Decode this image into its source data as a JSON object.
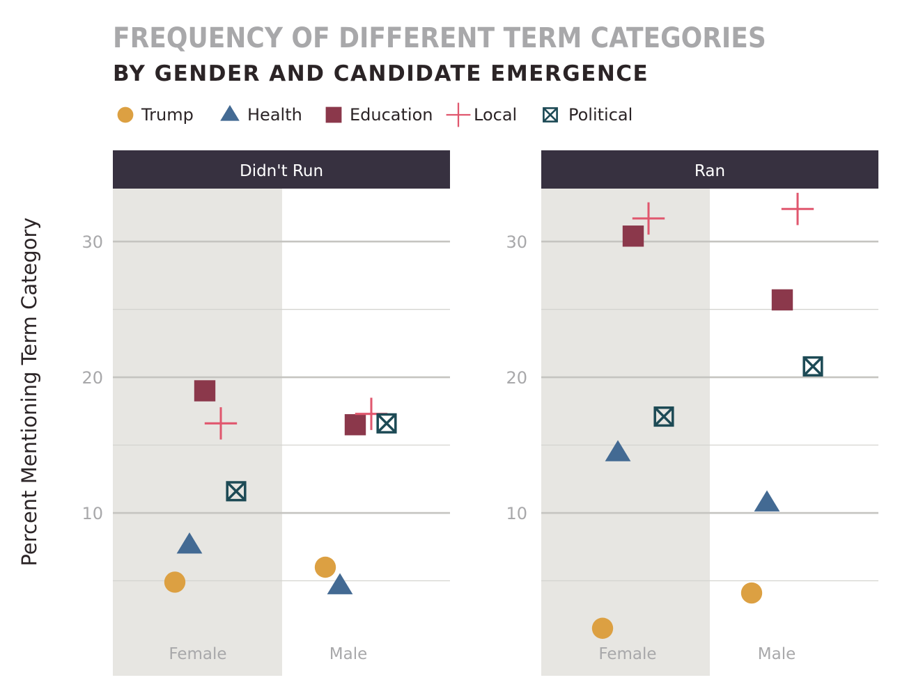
{
  "chart_data": {
    "type": "scatter",
    "title": "FREQUENCY OF DIFFERENT TERM CATEGORIES",
    "subtitle": "BY GENDER AND CANDIDATE EMERGENCE",
    "ylabel": "Percent Mentioning Term Category",
    "yticks": [
      10,
      20,
      30
    ],
    "ylim": [
      -2,
      33.9
    ],
    "grid": true,
    "legend_position": "top",
    "categories": [
      "Female",
      "Male"
    ],
    "series": [
      {
        "name": "Trump",
        "shape": "circle",
        "color": "#dca042"
      },
      {
        "name": "Health",
        "shape": "triangle",
        "color": "#436a93"
      },
      {
        "name": "Education",
        "shape": "square",
        "color": "#8b384b"
      },
      {
        "name": "Local",
        "shape": "plus",
        "color": "#e0576e"
      },
      {
        "name": "Political",
        "shape": "boxed-x",
        "color": "#1d4a55"
      }
    ],
    "panels": [
      {
        "label": "Didn't Run",
        "points": [
          {
            "series": "Trump",
            "category": "Female",
            "y": 4.9
          },
          {
            "series": "Health",
            "category": "Female",
            "y": 7.6
          },
          {
            "series": "Education",
            "category": "Female",
            "y": 19.0
          },
          {
            "series": "Local",
            "category": "Female",
            "y": 16.6
          },
          {
            "series": "Political",
            "category": "Female",
            "y": 11.6
          },
          {
            "series": "Trump",
            "category": "Male",
            "y": 6.0
          },
          {
            "series": "Health",
            "category": "Male",
            "y": 4.6
          },
          {
            "series": "Education",
            "category": "Male",
            "y": 16.5
          },
          {
            "series": "Local",
            "category": "Male",
            "y": 17.3
          },
          {
            "series": "Political",
            "category": "Male",
            "y": 16.6
          }
        ]
      },
      {
        "label": "Ran",
        "points": [
          {
            "series": "Trump",
            "category": "Female",
            "y": 1.5
          },
          {
            "series": "Health",
            "category": "Female",
            "y": 14.4
          },
          {
            "series": "Education",
            "category": "Female",
            "y": 30.4
          },
          {
            "series": "Local",
            "category": "Female",
            "y": 31.7
          },
          {
            "series": "Political",
            "category": "Female",
            "y": 17.1
          },
          {
            "series": "Trump",
            "category": "Male",
            "y": 4.1
          },
          {
            "series": "Health",
            "category": "Male",
            "y": 10.7
          },
          {
            "series": "Education",
            "category": "Male",
            "y": 25.7
          },
          {
            "series": "Local",
            "category": "Male",
            "y": 32.4
          },
          {
            "series": "Political",
            "category": "Male",
            "y": 20.8
          }
        ]
      }
    ]
  },
  "colors": {
    "strip_background": "#373140",
    "shaded_band": "#e7e6e2",
    "grid_major": "#c5c4c0",
    "grid_minor": "#d4d3cf"
  }
}
